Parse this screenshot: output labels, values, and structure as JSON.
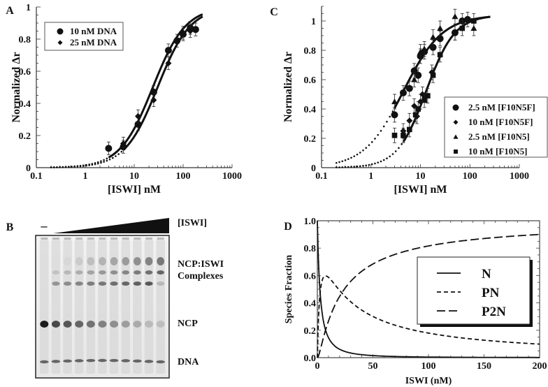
{
  "figure": {
    "panel_letters": [
      "A",
      "B",
      "C",
      "D"
    ]
  },
  "chart_data": [
    {
      "panel": "A",
      "type": "scatter",
      "xscale": "log",
      "xlabel": "[ISWI] nM",
      "ylabel": "Normalized Δr",
      "xlim": [
        0.1,
        1000
      ],
      "ylim": [
        0,
        1
      ],
      "xticks": [
        "0.1",
        "1",
        "10",
        "100",
        "1000"
      ],
      "yticks": [
        "0",
        "0.2",
        "0.4",
        "0.6",
        "0.8",
        "1"
      ],
      "legend": {
        "placement": "top-left",
        "entries": [
          {
            "label": "10 nM DNA",
            "marker": "circle"
          },
          {
            "label": "25 nM DNA",
            "marker": "diamond"
          }
        ]
      },
      "series": [
        {
          "name": "10 nM DNA",
          "marker": "circle",
          "x": [
            3,
            6,
            12,
            25,
            50,
            75,
            100,
            140,
            180
          ],
          "y": [
            0.12,
            0.13,
            0.27,
            0.47,
            0.73,
            0.79,
            0.83,
            0.87,
            0.86
          ],
          "err": [
            0.04,
            0.04,
            0.04,
            0.04,
            0.04,
            0.04,
            0.04,
            0.04,
            0.04
          ],
          "fit": {
            "kd": 24,
            "n": 1.3,
            "xmax": 260
          }
        },
        {
          "name": "25 nM DNA",
          "marker": "diamond",
          "x": [
            6,
            12,
            25,
            50,
            100,
            140
          ],
          "y": [
            0.15,
            0.32,
            0.42,
            0.65,
            0.84,
            0.85
          ],
          "err": [
            0.04,
            0.04,
            0.04,
            0.04,
            0.04,
            0.04
          ],
          "fit": {
            "kd": 30,
            "n": 1.3,
            "xmax": 260
          }
        }
      ],
      "fit_dots_below": 1
    },
    {
      "panel": "C",
      "type": "scatter",
      "xscale": "log",
      "xlabel": "[ISWI] nM",
      "ylabel": "Normalized Δr",
      "xlim": [
        0.1,
        1000
      ],
      "ylim": [
        0,
        1.1
      ],
      "xticks": [
        "0.1",
        "1",
        "10",
        "100",
        "1000"
      ],
      "yticks": [
        "0",
        "0.2",
        "0.4",
        "0.6",
        "0.8",
        "1"
      ],
      "legend": {
        "placement": "bottom-right",
        "entries": [
          {
            "label": "2.5 nM [F10N5F]",
            "marker": "circle"
          },
          {
            "label": "10 nM [F10N5F]",
            "marker": "diamond"
          },
          {
            "label": "2.5 nM [F10N5]",
            "marker": "triangle"
          },
          {
            "label": "10 nM [F10N5]",
            "marker": "square"
          }
        ]
      },
      "series": [
        {
          "name": "2.5 nM [F10N5F]",
          "marker": "circle",
          "x": [
            3,
            4.5,
            6,
            7.5,
            9,
            10,
            12,
            18,
            25,
            50,
            70,
            90
          ],
          "y": [
            0.36,
            0.51,
            0.54,
            0.66,
            0.63,
            0.76,
            0.79,
            0.82,
            0.88,
            0.92,
            1.0,
            1.01
          ],
          "err": [
            0.05,
            0.05,
            0.05,
            0.05,
            0.05,
            0.05,
            0.05,
            0.05,
            0.05,
            0.05,
            0.05,
            0.05
          ],
          "fit": {
            "kd": 4.5,
            "n": 1.1,
            "xmax": 260
          }
        },
        {
          "name": "10 nM [F10N5F]",
          "marker": "diamond",
          "x": [
            4.5,
            6,
            7.5,
            8.5,
            10,
            11,
            17,
            50
          ],
          "y": [
            0.25,
            0.32,
            0.42,
            0.35,
            0.45,
            0.5,
            0.65,
            0.92
          ],
          "err": [
            0.05,
            0.05,
            0.05,
            0.05,
            0.05,
            0.05,
            0.05,
            0.05
          ],
          "fit": {
            "kd": 13,
            "n": 1.5,
            "xmax": 260
          }
        },
        {
          "name": "2.5 nM [F10N5]",
          "marker": "triangle",
          "x": [
            3,
            7.5,
            10,
            12,
            18,
            25,
            50,
            120
          ],
          "y": [
            0.45,
            0.6,
            0.79,
            0.81,
            0.89,
            0.95,
            1.03,
            0.95
          ],
          "err": [
            0.05,
            0.05,
            0.05,
            0.05,
            0.05,
            0.05,
            0.05,
            0.05
          ]
        },
        {
          "name": "10 nM [F10N5]",
          "marker": "square",
          "x": [
            3,
            4.5,
            6,
            8,
            9,
            12,
            14,
            18,
            25,
            70,
            120
          ],
          "y": [
            0.22,
            0.22,
            0.26,
            0.36,
            0.4,
            0.46,
            0.49,
            0.63,
            0.77,
            0.95,
            1.0
          ],
          "err": [
            0.05,
            0.05,
            0.05,
            0.05,
            0.05,
            0.05,
            0.05,
            0.05,
            0.05,
            0.05,
            0.05
          ]
        }
      ]
    },
    {
      "panel": "D",
      "type": "line",
      "xlabel": "ISWI (nM)",
      "ylabel": "Species Fraction",
      "xlim": [
        0,
        200
      ],
      "ylim": [
        0,
        1.0
      ],
      "xticks": [
        "0",
        "50",
        "100",
        "150",
        "200"
      ],
      "yticks": [
        "0.0",
        "0.2",
        "0.4",
        "0.6",
        "0.8",
        "1.0"
      ],
      "legend": {
        "placement": "right",
        "entries": [
          {
            "label": "N",
            "style": "solid"
          },
          {
            "label": "PN",
            "style": "short-dash"
          },
          {
            "label": "P2N",
            "style": "long-dash"
          }
        ]
      },
      "model": {
        "K1": 5,
        "K2": 11
      },
      "series": [
        {
          "name": "N",
          "style": "solid"
        },
        {
          "name": "PN",
          "style": "short-dash",
          "peak": {
            "x": 14,
            "y": 0.58
          }
        },
        {
          "name": "P2N",
          "style": "long-dash",
          "end_value": 0.95
        }
      ]
    }
  ],
  "gel": {
    "panel": "B",
    "minus_label": "–",
    "gradient_label": "[ISWI]",
    "lane_count": 11,
    "band_labels": [
      "NCP:ISWI",
      "Complexes",
      "NCP",
      "DNA"
    ]
  }
}
